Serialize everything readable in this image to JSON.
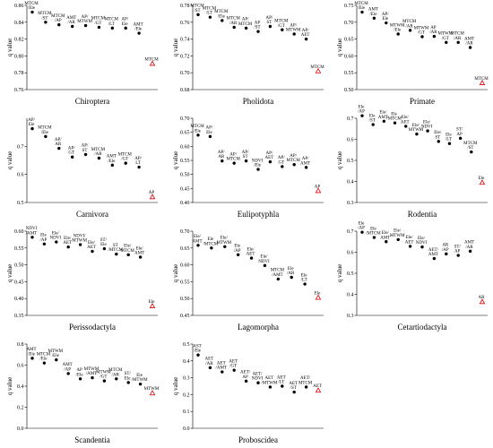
{
  "figure": {
    "ylabel": "q value"
  },
  "chart_data": [
    {
      "type": "scatter",
      "title": "Chiroptera",
      "ylabel": "q value",
      "ylim": [
        0.76,
        0.86
      ],
      "yticks": [
        0.76,
        0.78,
        0.8,
        0.82,
        0.84,
        0.86
      ],
      "decimals": 2,
      "points": [
        {
          "label": [
            "MTCM",
            "/Ele"
          ],
          "value": 0.852
        },
        {
          "label": [
            "MTCM",
            "/ST"
          ],
          "value": 0.84
        },
        {
          "label": [
            "MTCM",
            "/AP"
          ],
          "value": 0.837
        },
        {
          "label": [
            "AMT",
            "/AR"
          ],
          "value": 0.835
        },
        {
          "label": [
            "AP/",
            "MTWM"
          ],
          "value": 0.836
        },
        {
          "label": [
            "MTCM",
            "/GT"
          ],
          "value": 0.834
        },
        {
          "label": [
            "MTCM",
            "/LT"
          ],
          "value": 0.833
        },
        {
          "label": [
            "AP/",
            "Ele"
          ],
          "value": 0.833
        },
        {
          "label": [
            "AMT",
            "/Ele"
          ],
          "value": 0.827
        },
        {
          "label": [
            "MTCM"
          ],
          "value": 0.791,
          "highlight": true
        }
      ]
    },
    {
      "type": "scatter",
      "title": "Pholidota",
      "ylabel": "q value",
      "ylim": [
        0.68,
        0.78
      ],
      "yticks": [
        0.68,
        0.7,
        0.72,
        0.74,
        0.76,
        0.78
      ],
      "decimals": 2,
      "points": [
        {
          "label": [
            "MTCM",
            "/ST"
          ],
          "value": 0.769
        },
        {
          "label": [
            "MTCM",
            "/LT"
          ],
          "value": 0.766
        },
        {
          "label": [
            "MTCM",
            "/Ele"
          ],
          "value": 0.762
        },
        {
          "label": [
            "MTCM",
            "/AR"
          ],
          "value": 0.754
        },
        {
          "label": [
            "AP/",
            "MTCM"
          ],
          "value": 0.753
        },
        {
          "label": [
            "AP",
            "/ST"
          ],
          "value": 0.749
        },
        {
          "label": [
            "AP/",
            "ST"
          ],
          "value": 0.755
        },
        {
          "label": [
            "MTCM",
            "/GT"
          ],
          "value": 0.751
        },
        {
          "label": [
            "AP/",
            "MTWM"
          ],
          "value": 0.746
        },
        {
          "label": [
            "AP/",
            "AET"
          ],
          "value": 0.74
        },
        {
          "label": [
            "MTCM"
          ],
          "value": 0.702,
          "highlight": true
        }
      ]
    },
    {
      "type": "scatter",
      "title": "Primate",
      "ylabel": "q value",
      "ylim": [
        0.5,
        0.75
      ],
      "yticks": [
        0.5,
        0.55,
        0.6,
        0.65,
        0.7,
        0.75
      ],
      "decimals": 2,
      "points": [
        {
          "label": [
            "MTCM",
            "/Ele"
          ],
          "value": 0.73
        },
        {
          "label": [
            "AMT",
            "/Ele"
          ],
          "value": 0.712
        },
        {
          "label": [
            "AP/",
            "Ele"
          ],
          "value": 0.698
        },
        {
          "label": [
            "MTWM",
            "/Ele"
          ],
          "value": 0.665
        },
        {
          "label": [
            "MTCM",
            "/AR"
          ],
          "value": 0.676
        },
        {
          "label": [
            "MTWM",
            "/GT"
          ],
          "value": 0.657
        },
        {
          "label": [
            "AP",
            "/AR"
          ],
          "value": 0.658
        },
        {
          "label": [
            "MTWM",
            "/GT"
          ],
          "value": 0.64
        },
        {
          "label": [
            "MTCM",
            "/AR"
          ],
          "value": 0.64
        },
        {
          "label": [
            "AMT",
            "/AR"
          ],
          "value": 0.625
        },
        {
          "label": [
            "MTCM"
          ],
          "value": 0.52,
          "highlight": true
        }
      ]
    },
    {
      "type": "scatter",
      "title": "Carnivora",
      "ylabel": "q value",
      "ylim": [
        0.5,
        0.8
      ],
      "yticks": [
        0.5,
        0.6,
        0.7
      ],
      "decimals": 1,
      "points": [
        {
          "label": [
            "AP/",
            "Ele"
          ],
          "value": 0.763
        },
        {
          "label": [
            "MTCM",
            "/Ele"
          ],
          "value": 0.735
        },
        {
          "label": [
            "AP/",
            "AR"
          ],
          "value": 0.693
        },
        {
          "label": [
            "AP/",
            "GT"
          ],
          "value": 0.662
        },
        {
          "label": [
            "AP/",
            "ST"
          ],
          "value": 0.671
        },
        {
          "label": [
            "MTCM",
            "/AR"
          ],
          "value": 0.658
        },
        {
          "label": [
            "AMT",
            "/Ele"
          ],
          "value": 0.633
        },
        {
          "label": [
            "MTCM",
            "/GT"
          ],
          "value": 0.64
        },
        {
          "label": [
            "AP/",
            "LT"
          ],
          "value": 0.626
        },
        {
          "label": [
            "AP"
          ],
          "value": 0.52,
          "highlight": true
        }
      ]
    },
    {
      "type": "scatter",
      "title": "Eulipotyphla",
      "ylabel": "q value",
      "ylim": [
        0.4,
        0.7
      ],
      "yticks": [
        0.4,
        0.45,
        0.5,
        0.55,
        0.6,
        0.65,
        0.7
      ],
      "decimals": 2,
      "points": [
        {
          "label": [
            "MTCM",
            "/Ele"
          ],
          "value": 0.64
        },
        {
          "label": [
            "AP/",
            "Ele"
          ],
          "value": 0.635
        },
        {
          "label": [
            "AP/",
            "AR"
          ],
          "value": 0.548
        },
        {
          "label": [
            "AP/",
            "MTCM"
          ],
          "value": 0.54
        },
        {
          "label": [
            "AP/",
            "ST"
          ],
          "value": 0.548
        },
        {
          "label": [
            "NDVI",
            "/Ele"
          ],
          "value": 0.518
        },
        {
          "label": [
            "AP/",
            "AET"
          ],
          "value": 0.545
        },
        {
          "label": [
            "AP/",
            "GT"
          ],
          "value": 0.528
        },
        {
          "label": [
            "AP/",
            "MTCM"
          ],
          "value": 0.535
        },
        {
          "label": [
            "AP/",
            "AMT"
          ],
          "value": 0.525
        },
        {
          "label": [
            "AP"
          ],
          "value": 0.442,
          "highlight": true
        }
      ]
    },
    {
      "type": "scatter",
      "title": "Rodentia",
      "ylabel": "q value",
      "ylim": [
        0.3,
        0.7
      ],
      "yticks": [
        0.3,
        0.4,
        0.5,
        0.6,
        0.7
      ],
      "decimals": 1,
      "points": [
        {
          "label": [
            "Ele",
            "/AP"
          ],
          "value": 0.712
        },
        {
          "label": [
            "Ele",
            "/ST"
          ],
          "value": 0.67
        },
        {
          "label": [
            "Ele/",
            "AMT"
          ],
          "value": 0.686
        },
        {
          "label": [
            "Ele",
            "/MTCM"
          ],
          "value": 0.678
        },
        {
          "label": [
            "Ele/",
            "AET"
          ],
          "value": 0.662
        },
        {
          "label": [
            "Ele/",
            "MTWM"
          ],
          "value": 0.625
        },
        {
          "label": [
            "Ele/",
            "NDVI"
          ],
          "value": 0.64
        },
        {
          "label": [
            "Ele/",
            "ST"
          ],
          "value": 0.59
        },
        {
          "label": [
            "Ele",
            "/LT"
          ],
          "value": 0.58
        },
        {
          "label": [
            "ST/",
            "AP"
          ],
          "value": 0.605
        },
        {
          "label": [
            "MTCM",
            "/ST"
          ],
          "value": 0.54
        },
        {
          "label": [
            "Ele"
          ],
          "value": 0.395,
          "highlight": true
        }
      ]
    },
    {
      "type": "scatter",
      "title": "Perissodactyla",
      "ylabel": "q value",
      "ylim": [
        0.35,
        0.6
      ],
      "yticks": [
        0.35,
        0.4,
        0.45,
        0.5,
        0.55,
        0.6
      ],
      "decimals": 2,
      "points": [
        {
          "label": [
            "NDVI",
            "/AMT"
          ],
          "value": 0.582
        },
        {
          "label": [
            "Ele",
            "/AP"
          ],
          "value": 0.562
        },
        {
          "label": [
            "Ele/",
            "NDVI"
          ],
          "value": 0.568
        },
        {
          "label": [
            "Ele/",
            "AET"
          ],
          "value": 0.553
        },
        {
          "label": [
            "NDVI/",
            "MTWM"
          ],
          "value": 0.56
        },
        {
          "label": [
            "Ele/",
            "AET"
          ],
          "value": 0.54
        },
        {
          "label": [
            "ST/",
            "Ele"
          ],
          "value": 0.548
        },
        {
          "label": [
            "ST",
            "/MTCM"
          ],
          "value": 0.532
        },
        {
          "label": [
            "Ele/",
            "MTCM"
          ],
          "value": 0.53
        },
        {
          "label": [
            "Ele/",
            "AMT"
          ],
          "value": 0.523
        },
        {
          "label": [
            "Ele"
          ],
          "value": 0.378,
          "highlight": true
        }
      ]
    },
    {
      "type": "scatter",
      "title": "Lagomorpha",
      "ylabel": "q value",
      "ylim": [
        0.45,
        0.7
      ],
      "yticks": [
        0.45,
        0.5,
        0.55,
        0.6,
        0.65,
        0.7
      ],
      "decimals": 2,
      "points": [
        {
          "label": [
            "Ele/",
            "AMT"
          ],
          "value": 0.658
        },
        {
          "label": [
            "Ele",
            "/MTCM"
          ],
          "value": 0.65
        },
        {
          "label": [
            "Ele/",
            "MTWM"
          ],
          "value": 0.654
        },
        {
          "label": [
            "Ele",
            "/AP"
          ],
          "value": 0.63
        },
        {
          "label": [
            "Ele/",
            "AET"
          ],
          "value": 0.62
        },
        {
          "label": [
            "Ele/",
            "NDVI"
          ],
          "value": 0.598
        },
        {
          "label": [
            "MTCM",
            "/AMT"
          ],
          "value": 0.558
        },
        {
          "label": [
            "Ele",
            "/AR"
          ],
          "value": 0.563
        },
        {
          "label": [
            "Ele",
            "/LT"
          ],
          "value": 0.543
        },
        {
          "label": [
            "Ele"
          ],
          "value": 0.503,
          "highlight": true
        }
      ]
    },
    {
      "type": "scatter",
      "title": "Cetartiodactyla",
      "ylabel": "q value",
      "ylim": [
        0.3,
        0.7
      ],
      "yticks": [
        0.3,
        0.4,
        0.5,
        0.6,
        0.7
      ],
      "decimals": 1,
      "points": [
        {
          "label": [
            "Ele",
            "/AP"
          ],
          "value": 0.695
        },
        {
          "label": [
            "Ele",
            "/MTCM"
          ],
          "value": 0.67
        },
        {
          "label": [
            "Ele/",
            "AMT"
          ],
          "value": 0.65
        },
        {
          "label": [
            "Ele/",
            "MTWM"
          ],
          "value": 0.66
        },
        {
          "label": [
            "Ele/",
            "AET"
          ],
          "value": 0.628
        },
        {
          "label": [
            "Ele/",
            "NDVI"
          ],
          "value": 0.625
        },
        {
          "label": [
            "AET/",
            "AMT"
          ],
          "value": 0.57
        },
        {
          "label": [
            "AR",
            "/AP"
          ],
          "value": 0.592
        },
        {
          "label": [
            "ST/",
            "AP"
          ],
          "value": 0.585
        },
        {
          "label": [
            "AMT",
            "/AR"
          ],
          "value": 0.605
        },
        {
          "label": [
            "AR"
          ],
          "value": 0.365,
          "highlight": true
        }
      ]
    },
    {
      "type": "scatter",
      "title": "Scandentia",
      "ylabel": "q value",
      "ylim": [
        0.0,
        0.8
      ],
      "yticks": [
        0.0,
        0.2,
        0.4,
        0.6,
        0.8
      ],
      "decimals": 1,
      "points": [
        {
          "label": [
            "AMT",
            "/Ele"
          ],
          "value": 0.665
        },
        {
          "label": [
            "MTCM",
            "/Ele"
          ],
          "value": 0.62
        },
        {
          "label": [
            "MTWM",
            "/Ele"
          ],
          "value": 0.65
        },
        {
          "label": [
            "AMT",
            "/AP"
          ],
          "value": 0.52
        },
        {
          "label": [
            "AP",
            "/Ele"
          ],
          "value": 0.47
        },
        {
          "label": [
            "MTWM",
            "/AMT"
          ],
          "value": 0.48
        },
        {
          "label": [
            "MTWM",
            "/GT"
          ],
          "value": 0.45
        },
        {
          "label": [
            "MTCM",
            "/AR"
          ],
          "value": 0.47
        },
        {
          "label": [
            "ST/",
            "Ele"
          ],
          "value": 0.435
        },
        {
          "label": [
            "Ele",
            "/MTWM"
          ],
          "value": 0.42
        },
        {
          "label": [
            "MTWM"
          ],
          "value": 0.335,
          "highlight": true
        }
      ]
    },
    {
      "type": "scatter",
      "title": "Proboscidea",
      "ylabel": "q value",
      "ylim": [
        0.0,
        0.5
      ],
      "yticks": [
        0.0,
        0.1,
        0.2,
        0.3,
        0.4,
        0.5
      ],
      "decimals": 1,
      "points": [
        {
          "label": [
            "AST",
            "/Ele"
          ],
          "value": 0.435
        },
        {
          "label": [
            "AET",
            "/AR"
          ],
          "value": 0.36
        },
        {
          "label": [
            "AET",
            "/AMT"
          ],
          "value": 0.335
        },
        {
          "label": [
            "AET",
            "/GT"
          ],
          "value": 0.345
        },
        {
          "label": [
            "AET/",
            "AP"
          ],
          "value": 0.28
        },
        {
          "label": [
            "AET/",
            "NDVI"
          ],
          "value": 0.27
        },
        {
          "label": [
            "AET",
            "/MTWM"
          ],
          "value": 0.245
        },
        {
          "label": [
            "AET",
            "/LT"
          ],
          "value": 0.25
        },
        {
          "label": [
            "AET",
            "/ST"
          ],
          "value": 0.215
        },
        {
          "label": [
            "AET/",
            "MTCM"
          ],
          "value": 0.245
        },
        {
          "label": [
            "AET"
          ],
          "value": 0.225,
          "highlight": true
        }
      ]
    }
  ]
}
